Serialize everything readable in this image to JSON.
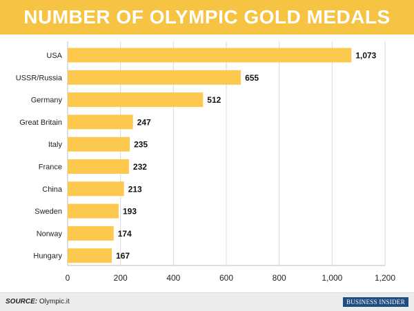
{
  "header": {
    "title": "NUMBER OF OLYMPIC GOLD MEDALS"
  },
  "footer": {
    "source_label": "SOURCE:",
    "source_text": "Olympic.it",
    "brand": "BUSINESS INSIDER"
  },
  "colors": {
    "accent": "#f6c343",
    "bar": "#fcc84e",
    "grid": "#d9d9d9",
    "footer_brand": "#1f4f82"
  },
  "chart_data": {
    "type": "bar",
    "orientation": "horizontal",
    "title": "NUMBER OF OLYMPIC GOLD MEDALS",
    "categories": [
      "USA",
      "USSR/Russia",
      "Germany",
      "Great Britain",
      "Italy",
      "France",
      "China",
      "Sweden",
      "Norway",
      "Hungary"
    ],
    "values": [
      1073,
      655,
      512,
      247,
      235,
      232,
      213,
      193,
      174,
      167
    ],
    "value_labels": [
      "1,073",
      "655",
      "512",
      "247",
      "235",
      "232",
      "213",
      "193",
      "174",
      "167"
    ],
    "xlim": [
      0,
      1200
    ],
    "xticks": [
      0,
      200,
      400,
      600,
      800,
      1000,
      1200
    ],
    "xtick_labels": [
      "0",
      "200",
      "400",
      "600",
      "800",
      "1,000",
      "1,200"
    ],
    "grid": true
  }
}
